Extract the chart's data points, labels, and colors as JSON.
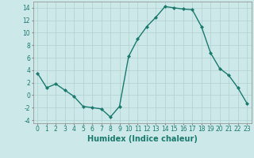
{
  "x": [
    0,
    1,
    2,
    3,
    4,
    5,
    6,
    7,
    8,
    9,
    10,
    11,
    12,
    13,
    14,
    15,
    16,
    17,
    18,
    19,
    20,
    21,
    22,
    23
  ],
  "y": [
    3.5,
    1.2,
    1.8,
    0.8,
    -0.2,
    -1.8,
    -2.0,
    -2.2,
    -3.5,
    -1.8,
    6.2,
    9.0,
    11.0,
    12.5,
    14.2,
    14.0,
    13.8,
    13.7,
    11.0,
    6.8,
    4.3,
    3.2,
    1.2,
    -1.3
  ],
  "line_color": "#1a7a6e",
  "marker": "D",
  "marker_size": 2.0,
  "bg_color": "#cce8e8",
  "grid_color": "#b0d0d0",
  "xlabel": "Humidex (Indice chaleur)",
  "xlim": [
    -0.5,
    23.5
  ],
  "ylim": [
    -4.5,
    15.0
  ],
  "xticks": [
    0,
    1,
    2,
    3,
    4,
    5,
    6,
    7,
    8,
    9,
    10,
    11,
    12,
    13,
    14,
    15,
    16,
    17,
    18,
    19,
    20,
    21,
    22,
    23
  ],
  "yticks": [
    -4,
    -2,
    0,
    2,
    4,
    6,
    8,
    10,
    12,
    14
  ],
  "tick_fontsize": 5.5,
  "xlabel_fontsize": 7.0,
  "linewidth": 1.0,
  "grid_linewidth": 0.5
}
